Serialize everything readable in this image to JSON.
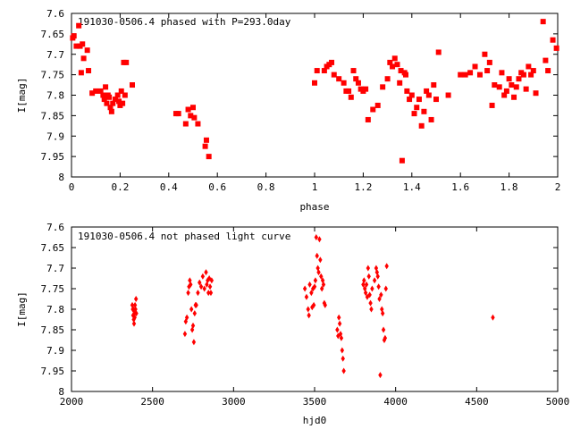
{
  "colors": {
    "marker": "#ff0000",
    "axis": "#000000",
    "background": "#ffffff"
  },
  "chart_data": [
    {
      "type": "scatter",
      "title": "191030-0506.4 phased with P=293.0day",
      "xlabel": "phase",
      "ylabel": "I[mag]",
      "xlim": [
        0,
        2
      ],
      "ylim": [
        7.6,
        8.0
      ],
      "y_inverted": true,
      "grid": false,
      "legend": "none",
      "x_ticks": [
        "0",
        "0.2",
        "0.4",
        "0.6",
        "0.8",
        "1",
        "1.2",
        "1.4",
        "1.6",
        "1.8",
        "2"
      ],
      "y_ticks": [
        "7.6",
        "7.65",
        "7.7",
        "7.75",
        "7.8",
        "7.85",
        "7.9",
        "7.95",
        "8"
      ],
      "series": [
        {
          "marker": "square",
          "points": [
            [
              0.005,
              7.66
            ],
            [
              0.01,
              7.655
            ],
            [
              0.02,
              7.68
            ],
            [
              0.03,
              7.63
            ],
            [
              0.035,
              7.68
            ],
            [
              0.04,
              7.745
            ],
            [
              0.045,
              7.675
            ],
            [
              0.05,
              7.71
            ],
            [
              0.065,
              7.69
            ],
            [
              0.07,
              7.74
            ],
            [
              0.085,
              7.795
            ],
            [
              0.1,
              7.79
            ],
            [
              0.12,
              7.79
            ],
            [
              0.13,
              7.8
            ],
            [
              0.135,
              7.81
            ],
            [
              0.14,
              7.78
            ],
            [
              0.145,
              7.82
            ],
            [
              0.15,
              7.8
            ],
            [
              0.155,
              7.805
            ],
            [
              0.16,
              7.83
            ],
            [
              0.165,
              7.84
            ],
            [
              0.17,
              7.82
            ],
            [
              0.18,
              7.81
            ],
            [
              0.19,
              7.8
            ],
            [
              0.195,
              7.815
            ],
            [
              0.2,
              7.825
            ],
            [
              0.205,
              7.79
            ],
            [
              0.21,
              7.82
            ],
            [
              0.215,
              7.72
            ],
            [
              0.22,
              7.8
            ],
            [
              0.225,
              7.72
            ],
            [
              0.25,
              7.775
            ],
            [
              0.43,
              7.845
            ],
            [
              0.44,
              7.845
            ],
            [
              0.47,
              7.87
            ],
            [
              0.48,
              7.835
            ],
            [
              0.49,
              7.85
            ],
            [
              0.5,
              7.83
            ],
            [
              0.505,
              7.855
            ],
            [
              0.52,
              7.87
            ],
            [
              0.55,
              7.925
            ],
            [
              0.555,
              7.91
            ],
            [
              0.565,
              7.95
            ],
            [
              1.0,
              7.77
            ],
            [
              1.01,
              7.74
            ],
            [
              1.04,
              7.74
            ],
            [
              1.05,
              7.73
            ],
            [
              1.06,
              7.725
            ],
            [
              1.07,
              7.72
            ],
            [
              1.08,
              7.75
            ],
            [
              1.1,
              7.76
            ],
            [
              1.12,
              7.77
            ],
            [
              1.13,
              7.79
            ],
            [
              1.14,
              7.79
            ],
            [
              1.15,
              7.805
            ],
            [
              1.16,
              7.74
            ],
            [
              1.17,
              7.76
            ],
            [
              1.18,
              7.77
            ],
            [
              1.19,
              7.785
            ],
            [
              1.2,
              7.79
            ],
            [
              1.21,
              7.785
            ],
            [
              1.22,
              7.86
            ],
            [
              1.24,
              7.835
            ],
            [
              1.26,
              7.825
            ],
            [
              1.28,
              7.78
            ],
            [
              1.3,
              7.76
            ],
            [
              1.31,
              7.72
            ],
            [
              1.32,
              7.73
            ],
            [
              1.33,
              7.71
            ],
            [
              1.34,
              7.725
            ],
            [
              1.35,
              7.77
            ],
            [
              1.355,
              7.74
            ],
            [
              1.36,
              7.96
            ],
            [
              1.37,
              7.745
            ],
            [
              1.375,
              7.75
            ],
            [
              1.38,
              7.79
            ],
            [
              1.39,
              7.81
            ],
            [
              1.4,
              7.8
            ],
            [
              1.41,
              7.845
            ],
            [
              1.42,
              7.83
            ],
            [
              1.43,
              7.81
            ],
            [
              1.44,
              7.875
            ],
            [
              1.45,
              7.84
            ],
            [
              1.46,
              7.79
            ],
            [
              1.47,
              7.8
            ],
            [
              1.48,
              7.86
            ],
            [
              1.49,
              7.775
            ],
            [
              1.5,
              7.81
            ],
            [
              1.51,
              7.695
            ],
            [
              1.55,
              7.8
            ],
            [
              1.6,
              7.75
            ],
            [
              1.62,
              7.75
            ],
            [
              1.64,
              7.745
            ],
            [
              1.66,
              7.73
            ],
            [
              1.68,
              7.75
            ],
            [
              1.7,
              7.7
            ],
            [
              1.71,
              7.74
            ],
            [
              1.72,
              7.72
            ],
            [
              1.73,
              7.825
            ],
            [
              1.74,
              7.775
            ],
            [
              1.76,
              7.78
            ],
            [
              1.77,
              7.745
            ],
            [
              1.78,
              7.8
            ],
            [
              1.79,
              7.79
            ],
            [
              1.8,
              7.76
            ],
            [
              1.81,
              7.775
            ],
            [
              1.82,
              7.805
            ],
            [
              1.83,
              7.78
            ],
            [
              1.84,
              7.76
            ],
            [
              1.85,
              7.745
            ],
            [
              1.86,
              7.75
            ],
            [
              1.87,
              7.785
            ],
            [
              1.88,
              7.73
            ],
            [
              1.89,
              7.75
            ],
            [
              1.9,
              7.74
            ],
            [
              1.91,
              7.795
            ],
            [
              1.94,
              7.62
            ],
            [
              1.95,
              7.715
            ],
            [
              1.96,
              7.74
            ],
            [
              1.98,
              7.665
            ],
            [
              1.995,
              7.685
            ]
          ]
        }
      ]
    },
    {
      "type": "scatter",
      "title": "191030-0506.4 not phased light curve",
      "xlabel": "hjd0",
      "ylabel": "I[mag]",
      "xlim": [
        2000,
        5000
      ],
      "ylim": [
        7.6,
        8.0
      ],
      "y_inverted": true,
      "grid": false,
      "legend": "none",
      "x_ticks": [
        "2000",
        "2500",
        "3000",
        "3500",
        "4000",
        "4500",
        "5000"
      ],
      "y_ticks": [
        "7.6",
        "7.65",
        "7.7",
        "7.75",
        "7.8",
        "7.85",
        "7.9",
        "7.95",
        "8"
      ],
      "series": [
        {
          "marker": "diamond",
          "points": [
            [
              2375,
              7.79
            ],
            [
              2378,
              7.8
            ],
            [
              2380,
              7.815
            ],
            [
              2382,
              7.8
            ],
            [
              2384,
              7.825
            ],
            [
              2386,
              7.835
            ],
            [
              2388,
              7.81
            ],
            [
              2390,
              7.82
            ],
            [
              2392,
              7.79
            ],
            [
              2395,
              7.8
            ],
            [
              2398,
              7.775
            ],
            [
              2400,
              7.81
            ],
            [
              2700,
              7.86
            ],
            [
              2705,
              7.83
            ],
            [
              2712,
              7.82
            ],
            [
              2720,
              7.76
            ],
            [
              2725,
              7.745
            ],
            [
              2730,
              7.73
            ],
            [
              2735,
              7.74
            ],
            [
              2740,
              7.8
            ],
            [
              2745,
              7.85
            ],
            [
              2750,
              7.84
            ],
            [
              2755,
              7.88
            ],
            [
              2760,
              7.81
            ],
            [
              2765,
              7.79
            ],
            [
              2770,
              7.79
            ],
            [
              2780,
              7.76
            ],
            [
              2790,
              7.735
            ],
            [
              2800,
              7.745
            ],
            [
              2810,
              7.72
            ],
            [
              2820,
              7.75
            ],
            [
              2830,
              7.71
            ],
            [
              2835,
              7.74
            ],
            [
              2840,
              7.73
            ],
            [
              2845,
              7.76
            ],
            [
              2850,
              7.725
            ],
            [
              2855,
              7.745
            ],
            [
              2860,
              7.76
            ],
            [
              2865,
              7.73
            ],
            [
              3440,
              7.75
            ],
            [
              3450,
              7.77
            ],
            [
              3460,
              7.8
            ],
            [
              3465,
              7.815
            ],
            [
              3470,
              7.74
            ],
            [
              3480,
              7.76
            ],
            [
              3485,
              7.795
            ],
            [
              3490,
              7.75
            ],
            [
              3495,
              7.79
            ],
            [
              3500,
              7.745
            ],
            [
              3505,
              7.73
            ],
            [
              3510,
              7.625
            ],
            [
              3515,
              7.67
            ],
            [
              3520,
              7.7
            ],
            [
              3525,
              7.71
            ],
            [
              3530,
              7.63
            ],
            [
              3535,
              7.68
            ],
            [
              3540,
              7.72
            ],
            [
              3545,
              7.75
            ],
            [
              3550,
              7.73
            ],
            [
              3555,
              7.74
            ],
            [
              3560,
              7.785
            ],
            [
              3565,
              7.79
            ],
            [
              3640,
              7.85
            ],
            [
              3645,
              7.865
            ],
            [
              3650,
              7.82
            ],
            [
              3655,
              7.835
            ],
            [
              3660,
              7.86
            ],
            [
              3665,
              7.87
            ],
            [
              3670,
              7.9
            ],
            [
              3675,
              7.92
            ],
            [
              3680,
              7.95
            ],
            [
              3800,
              7.74
            ],
            [
              3805,
              7.73
            ],
            [
              3810,
              7.75
            ],
            [
              3815,
              7.76
            ],
            [
              3820,
              7.74
            ],
            [
              3825,
              7.77
            ],
            [
              3830,
              7.7
            ],
            [
              3835,
              7.72
            ],
            [
              3840,
              7.765
            ],
            [
              3845,
              7.785
            ],
            [
              3850,
              7.8
            ],
            [
              3855,
              7.75
            ],
            [
              3870,
              7.73
            ],
            [
              3880,
              7.7
            ],
            [
              3885,
              7.71
            ],
            [
              3890,
              7.72
            ],
            [
              3895,
              7.745
            ],
            [
              3900,
              7.775
            ],
            [
              3905,
              7.96
            ],
            [
              3910,
              7.765
            ],
            [
              3915,
              7.8
            ],
            [
              3920,
              7.81
            ],
            [
              3925,
              7.85
            ],
            [
              3930,
              7.875
            ],
            [
              3935,
              7.87
            ],
            [
              3940,
              7.75
            ],
            [
              3945,
              7.695
            ],
            [
              4600,
              7.82
            ]
          ]
        }
      ]
    }
  ]
}
